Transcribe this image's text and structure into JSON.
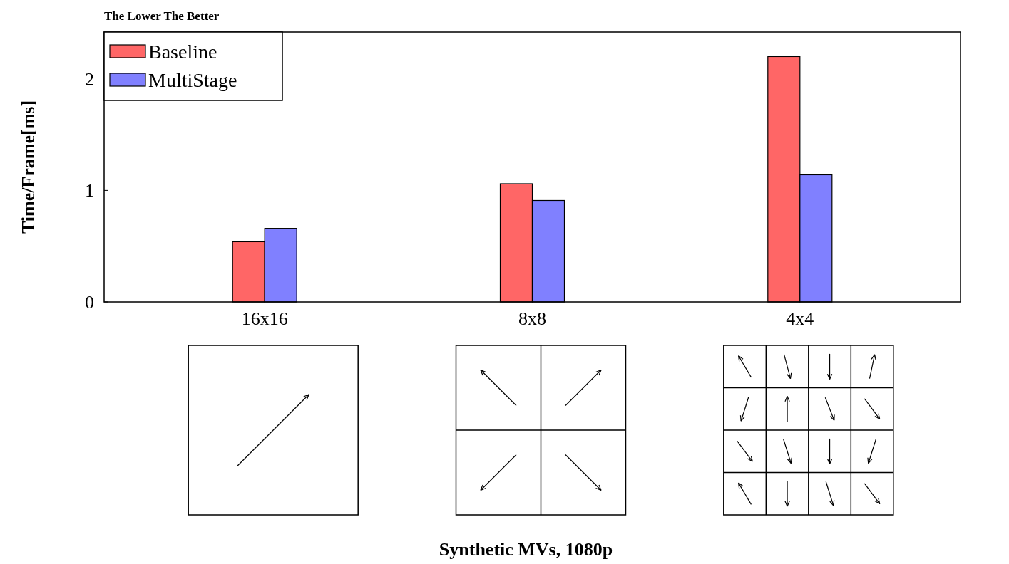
{
  "chart_data": {
    "type": "bar",
    "title": "The Lower The Better",
    "ylabel": "Time/Frame[ms]",
    "categories": [
      "16x16",
      "8x8",
      "4x4"
    ],
    "series": [
      {
        "name": "Baseline",
        "color": "#ff6666",
        "values": [
          0.54,
          1.06,
          2.2
        ]
      },
      {
        "name": "MultiStage",
        "color": "#8080ff",
        "values": [
          0.66,
          0.91,
          1.14
        ]
      }
    ],
    "ylim": [
      0,
      2.42
    ],
    "yticks": [
      0,
      1,
      2
    ],
    "grid": false,
    "legend": "top left",
    "annotations": [
      "Synthetic MVs, 1080p"
    ]
  }
}
